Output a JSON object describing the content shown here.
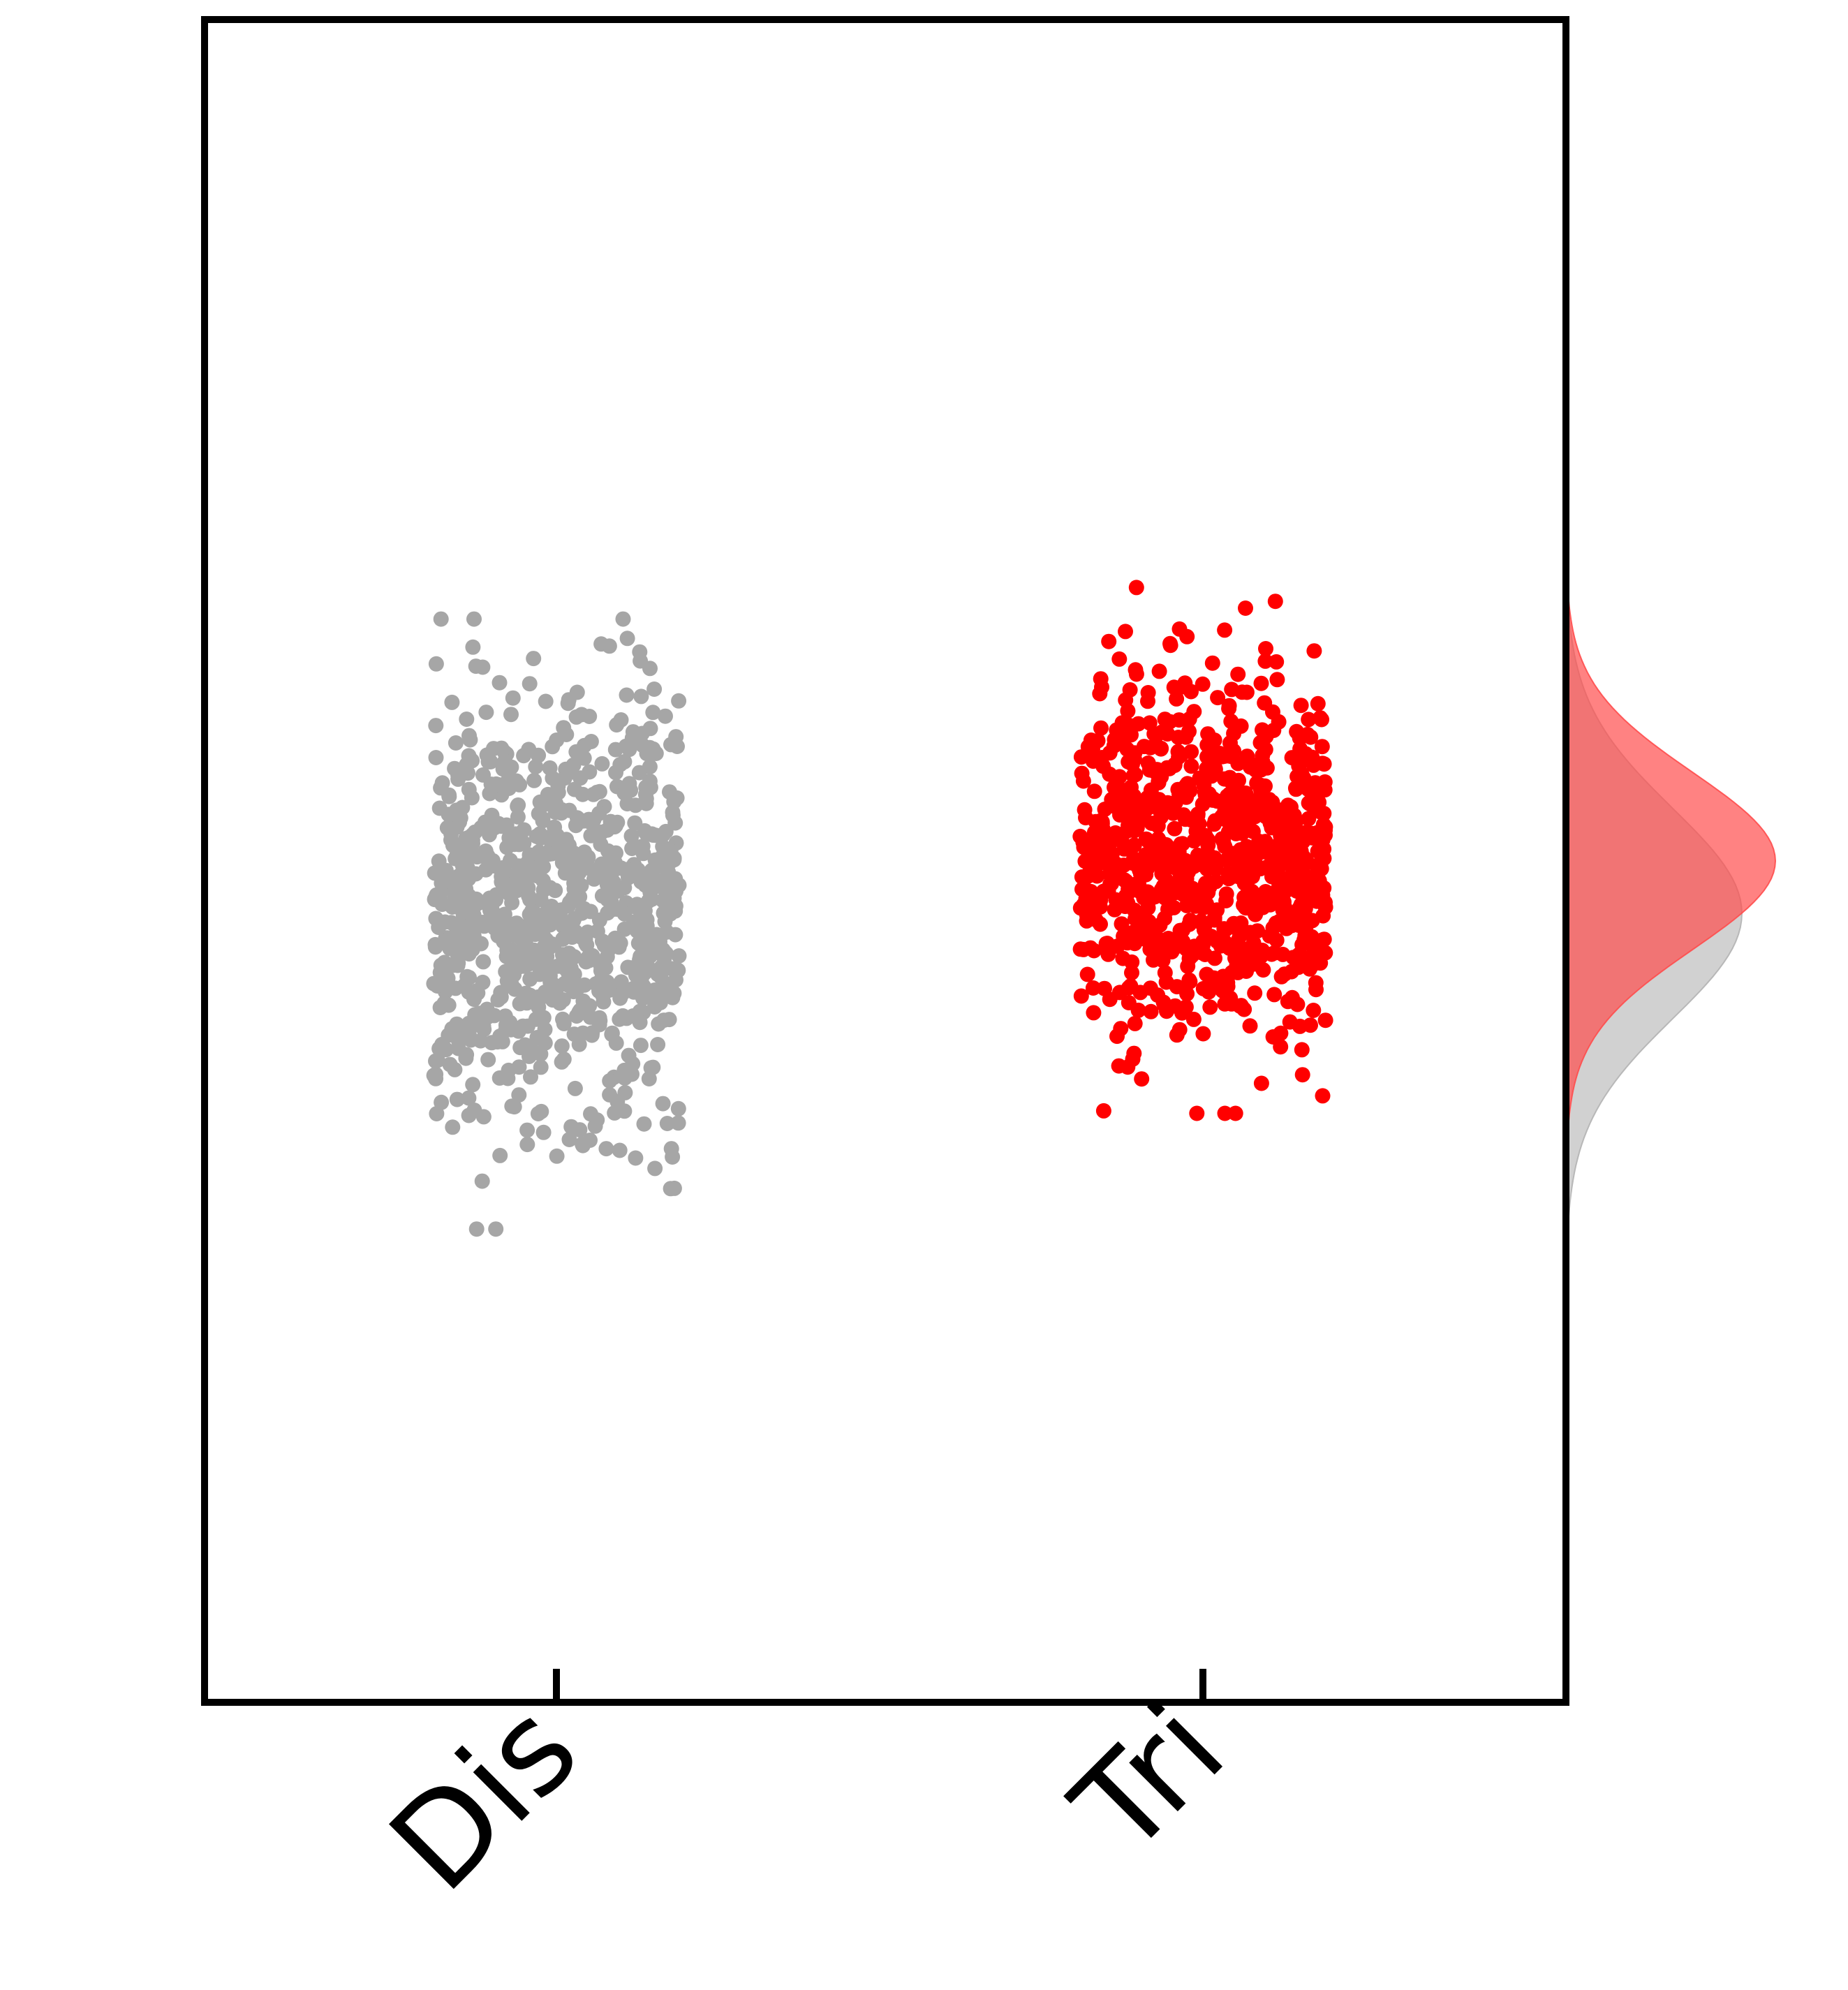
{
  "chart_data": {
    "type": "scatter",
    "subtype": "strip-plot-with-marginal-density",
    "title": "",
    "xlabel": "",
    "ylabel": "",
    "categories": [
      "Dis",
      "Tri"
    ],
    "ylim": [
      -4,
      4
    ],
    "y_ticks_shown": false,
    "grid": false,
    "legend": "none",
    "jitter_halfwidth": 0.38,
    "series": [
      {
        "category": "Dis",
        "color": "#a6a6a6",
        "n_points": 900,
        "mean": -0.25,
        "sd": 0.5,
        "y_range": [
          -1.75,
          1.15
        ],
        "seed": 11,
        "density_fill": "#b3b3b3",
        "density_opacity": 0.6
      },
      {
        "category": "Tri",
        "color": "#ff0000",
        "n_points": 900,
        "mean": 0.0,
        "sd": 0.42,
        "y_range": [
          -1.2,
          1.3
        ],
        "seed": 29,
        "density_fill": "#ff4d4d",
        "density_opacity": 0.7
      }
    ]
  }
}
